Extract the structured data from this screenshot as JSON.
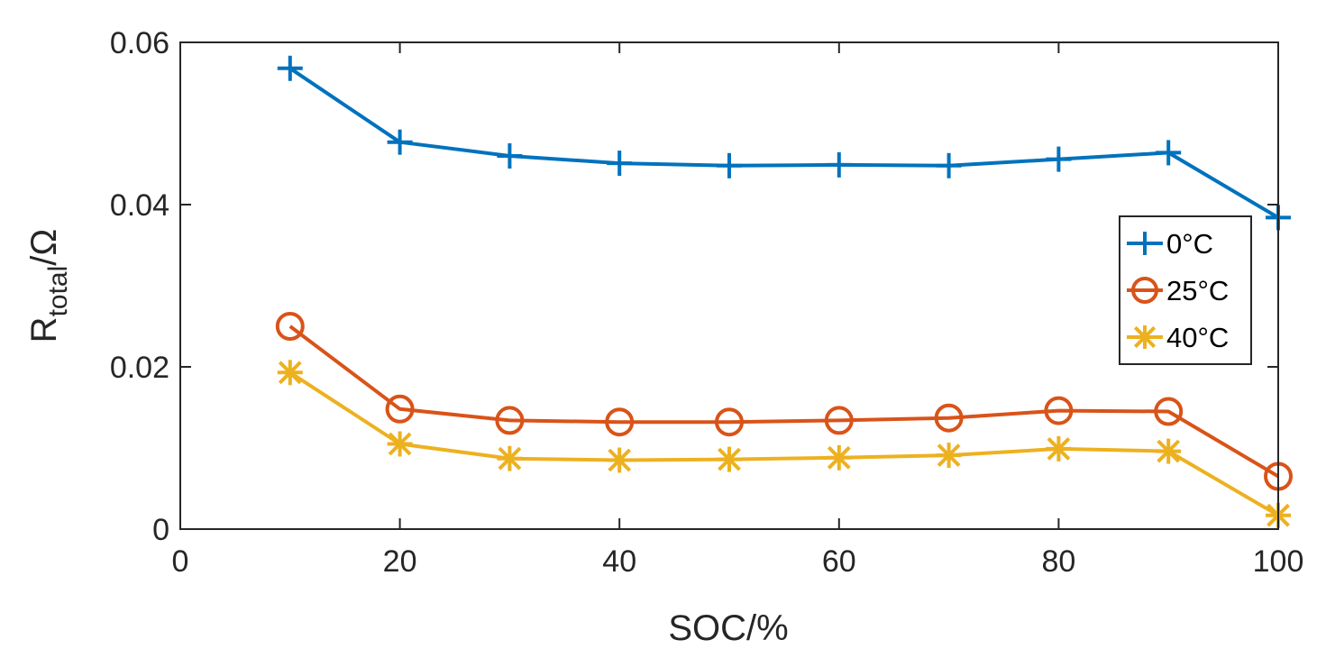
{
  "chart_data": {
    "type": "line",
    "title": "",
    "xlabel": "SOC/%",
    "ylabel": {
      "base": "R",
      "subscript": "total",
      "suffix": "/Ω"
    },
    "xlim": [
      0,
      100
    ],
    "ylim": [
      0,
      0.06
    ],
    "xticks": [
      0,
      20,
      40,
      60,
      80,
      100
    ],
    "xtick_labels": [
      "0",
      "20",
      "40",
      "60",
      "80",
      "100"
    ],
    "yticks": [
      0,
      0.02,
      0.04,
      0.06
    ],
    "ytick_labels": [
      "0",
      "0.02",
      "0.04",
      "0.06"
    ],
    "grid": false,
    "legend_position": "right",
    "x": [
      10,
      20,
      30,
      40,
      50,
      60,
      70,
      80,
      90,
      100
    ],
    "series": [
      {
        "name": "0°C",
        "marker": "plus",
        "color": "#0072BD",
        "values": [
          0.0568,
          0.0477,
          0.046,
          0.0451,
          0.0448,
          0.0449,
          0.0448,
          0.0456,
          0.0464,
          0.0384
        ]
      },
      {
        "name": "25°C",
        "marker": "circle",
        "color": "#D95319",
        "values": [
          0.025,
          0.0148,
          0.0134,
          0.0132,
          0.0132,
          0.0134,
          0.0137,
          0.0146,
          0.0145,
          0.0065
        ]
      },
      {
        "name": "40°C",
        "marker": "asterisk",
        "color": "#EDB120",
        "values": [
          0.0193,
          0.0105,
          0.0087,
          0.0085,
          0.0086,
          0.0088,
          0.0091,
          0.0099,
          0.0096,
          0.0017
        ]
      }
    ]
  }
}
